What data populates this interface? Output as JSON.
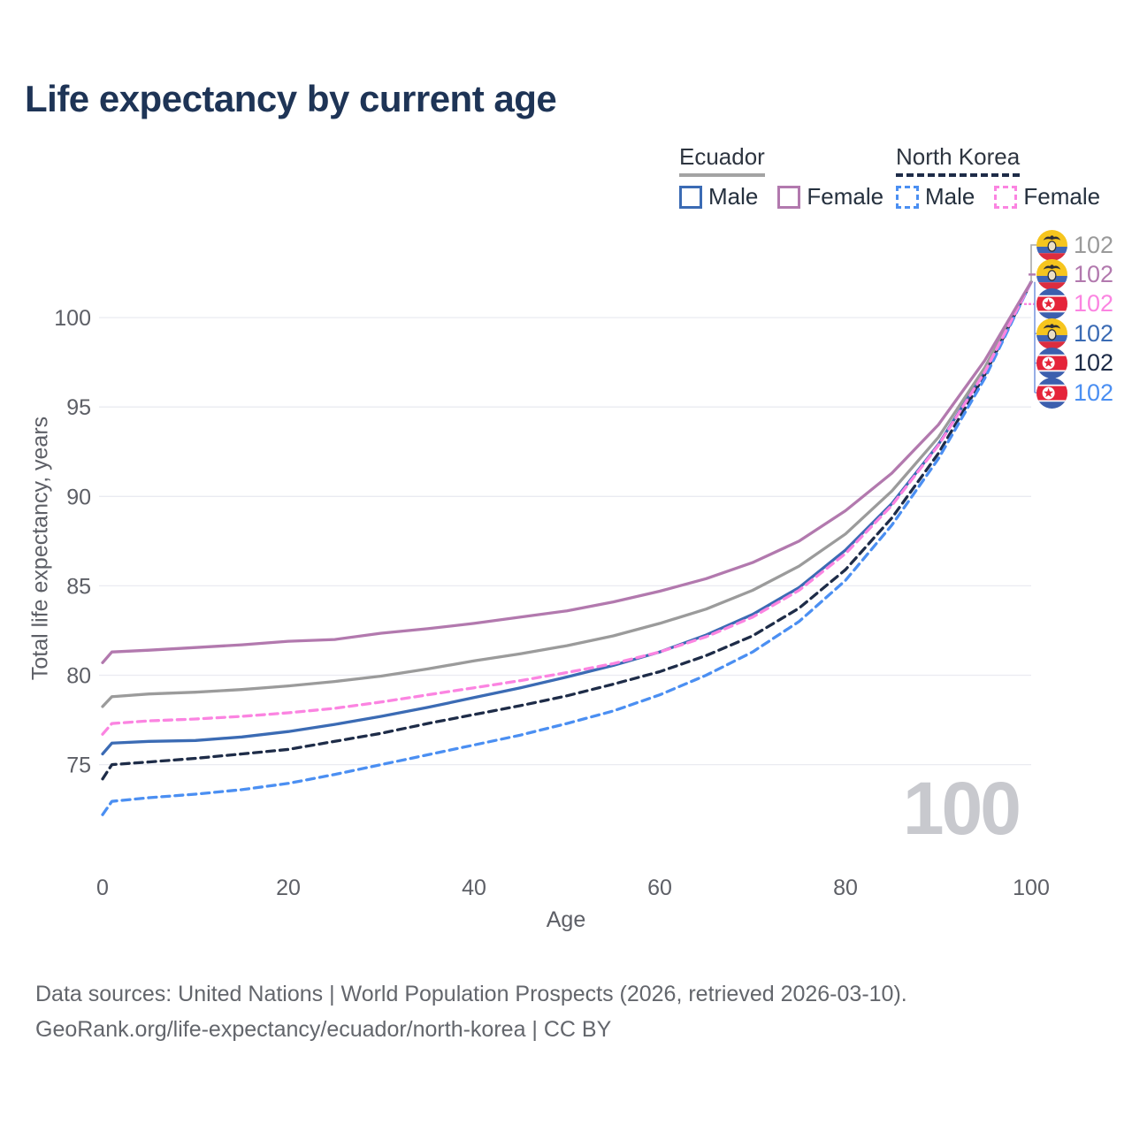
{
  "title": "Life expectancy by current age",
  "watermark": "100",
  "legend": {
    "groups": [
      {
        "name": "Ecuador",
        "style": "solid",
        "underline_color": "#a3a3a3",
        "items": [
          {
            "label": "Male",
            "color": "#3b6bb4"
          },
          {
            "label": "Female",
            "color": "#b279ae"
          }
        ]
      },
      {
        "name": "North Korea",
        "style": "dashed",
        "underline_color": "#1e2c48",
        "items": [
          {
            "label": "Male",
            "color": "#4b8ff2"
          },
          {
            "label": "Female",
            "color": "#fb84e1"
          }
        ]
      }
    ]
  },
  "chart_data": {
    "type": "line",
    "title": "Life expectancy by current age",
    "xlabel": "Age",
    "ylabel": "Total life expectancy, years",
    "xlim": [
      0,
      100
    ],
    "ylim": [
      71.5,
      103.5
    ],
    "x_ticks": [
      0,
      20,
      40,
      60,
      80,
      100
    ],
    "y_ticks": [
      75,
      80,
      85,
      90,
      95,
      100
    ],
    "grid": "horizontal",
    "legend_position": "top-right",
    "x": [
      0,
      1,
      5,
      10,
      15,
      20,
      25,
      30,
      35,
      40,
      45,
      50,
      55,
      60,
      65,
      70,
      75,
      80,
      85,
      90,
      95,
      100
    ],
    "series": [
      {
        "name": "Ecuador Female",
        "country": "Ecuador",
        "sex": "Female",
        "style": "solid",
        "color": "#b279ae",
        "values": [
          80.7,
          81.3,
          81.4,
          81.55,
          81.7,
          81.9,
          82.0,
          82.35,
          82.6,
          82.9,
          83.25,
          83.6,
          84.1,
          84.7,
          85.4,
          86.3,
          87.5,
          89.2,
          91.3,
          94.0,
          97.6,
          102
        ]
      },
      {
        "name": "Ecuador Both sexes",
        "country": "Ecuador",
        "sex": "Both",
        "style": "solid",
        "color": "#9b9b9b",
        "values": [
          78.25,
          78.8,
          78.95,
          79.05,
          79.2,
          79.4,
          79.65,
          79.95,
          80.35,
          80.8,
          81.2,
          81.65,
          82.2,
          82.9,
          83.7,
          84.75,
          86.1,
          87.9,
          90.3,
          93.3,
          97.2,
          102
        ]
      },
      {
        "name": "Ecuador Male",
        "country": "Ecuador",
        "sex": "Male",
        "style": "solid",
        "color": "#3b6bb4",
        "values": [
          75.6,
          76.2,
          76.3,
          76.35,
          76.55,
          76.85,
          77.25,
          77.7,
          78.2,
          78.75,
          79.3,
          79.9,
          80.55,
          81.3,
          82.25,
          83.4,
          84.9,
          87.0,
          89.6,
          92.9,
          97.0,
          102
        ]
      },
      {
        "name": "North Korea Female",
        "country": "North Korea",
        "sex": "Female",
        "style": "dashed",
        "color": "#fb84e1",
        "values": [
          76.7,
          77.3,
          77.45,
          77.55,
          77.7,
          77.9,
          78.15,
          78.5,
          78.9,
          79.3,
          79.7,
          80.15,
          80.65,
          81.3,
          82.15,
          83.25,
          84.75,
          86.8,
          89.5,
          92.85,
          96.95,
          102
        ]
      },
      {
        "name": "North Korea Both sexes",
        "country": "North Korea",
        "sex": "Both",
        "style": "dashed",
        "color": "#1e2c48",
        "values": [
          74.2,
          75.0,
          75.15,
          75.35,
          75.6,
          75.85,
          76.3,
          76.75,
          77.3,
          77.8,
          78.3,
          78.85,
          79.5,
          80.2,
          81.1,
          82.2,
          83.75,
          85.9,
          88.8,
          92.4,
          96.8,
          102
        ]
      },
      {
        "name": "North Korea Male",
        "country": "North Korea",
        "sex": "Male",
        "style": "dashed",
        "color": "#4b8ff2",
        "values": [
          72.2,
          72.95,
          73.15,
          73.35,
          73.6,
          73.95,
          74.45,
          75.0,
          75.55,
          76.1,
          76.65,
          77.3,
          78.0,
          78.9,
          80.0,
          81.3,
          83.0,
          85.3,
          88.4,
          92.1,
          96.6,
          102
        ]
      }
    ],
    "end_labels": [
      {
        "country": "Ecuador",
        "series": "Ecuador Both sexes",
        "value": "102",
        "color": "#9a9a9a"
      },
      {
        "country": "Ecuador",
        "series": "Ecuador Female",
        "value": "102",
        "color": "#b279ae"
      },
      {
        "country": "North Korea",
        "series": "North Korea Female",
        "value": "102",
        "color": "#fb84e1"
      },
      {
        "country": "Ecuador",
        "series": "Ecuador Male",
        "value": "102",
        "color": "#3b6bb4"
      },
      {
        "country": "North Korea",
        "series": "North Korea Both sexes",
        "value": "102",
        "color": "#1e2c48"
      },
      {
        "country": "North Korea",
        "series": "North Korea Male",
        "value": "102",
        "color": "#4b8ff2"
      }
    ]
  },
  "footer": {
    "line1": "Data sources: United Nations | World Population Prospects (2026, retrieved 2026-03-10).",
    "line2": "GeoRank.org/life-expectancy/ecuador/north-korea | CC BY"
  }
}
